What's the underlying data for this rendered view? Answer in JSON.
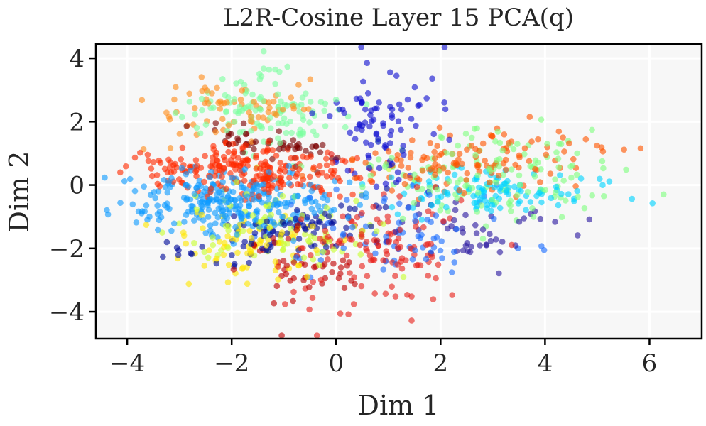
{
  "chart_data": {
    "type": "scatter",
    "title": "L2R-Cosine  Layer 15  PCA(q)",
    "xlabel": "Dim 1",
    "ylabel": "Dim 2",
    "xlim": [
      -4.6,
      7.0
    ],
    "ylim": [
      -4.85,
      4.45
    ],
    "xticks": [
      -4,
      -2,
      0,
      2,
      4,
      6
    ],
    "yticks": [
      -4,
      -2,
      0,
      2,
      4
    ],
    "xtick_labels": [
      "−4",
      "−2",
      "0",
      "2",
      "4",
      "6"
    ],
    "ytick_labels": [
      "−4",
      "−2",
      "0",
      "2",
      "4"
    ],
    "grid": true,
    "background": "#f7f7f7",
    "point_opacity": 0.62,
    "clusters": [
      {
        "name": "red",
        "color": "#ff2a00",
        "n": 230,
        "cx": -1.8,
        "cy": 0.45,
        "sx": 1.0,
        "sy": 0.42,
        "rot": -0.08
      },
      {
        "name": "red-orange",
        "color": "#ff5500",
        "n": 130,
        "cx": 2.6,
        "cy": 0.75,
        "sx": 1.2,
        "sy": 0.45,
        "rot": 0.12
      },
      {
        "name": "azure",
        "color": "#0f9bff",
        "n": 280,
        "cx": -2.0,
        "cy": -0.55,
        "sx": 0.95,
        "sy": 0.48,
        "rot": 0.0
      },
      {
        "name": "cyan",
        "color": "#00d4ff",
        "n": 110,
        "cx": 3.0,
        "cy": -0.3,
        "sx": 1.0,
        "sy": 0.35,
        "rot": 0.0
      },
      {
        "name": "blue",
        "color": "#1a6cff",
        "n": 70,
        "cx": 1.2,
        "cy": -1.6,
        "sx": 1.2,
        "sy": 0.7,
        "rot": 0.0
      },
      {
        "name": "crimson",
        "color": "#e8201a",
        "n": 120,
        "cx": 0.9,
        "cy": -2.0,
        "sx": 0.8,
        "sy": 0.9,
        "rot": 0.0
      },
      {
        "name": "dark red",
        "color": "#c00000",
        "n": 50,
        "cx": -0.7,
        "cy": -2.7,
        "sx": 0.55,
        "sy": 0.8,
        "rot": 0.3
      },
      {
        "name": "navy",
        "color": "#000c9a",
        "n": 90,
        "cx": -1.0,
        "cy": -1.5,
        "sx": 1.1,
        "sy": 0.4,
        "rot": 0.35
      },
      {
        "name": "royal blue",
        "color": "#1010d0",
        "n": 90,
        "cx": 1.0,
        "cy": 1.8,
        "sx": 0.6,
        "sy": 0.9,
        "rot": 0.0
      },
      {
        "name": "indigo",
        "color": "#2a18a0",
        "n": 50,
        "cx": 2.4,
        "cy": -1.5,
        "sx": 0.9,
        "sy": 0.5,
        "rot": 0.0
      },
      {
        "name": "light green",
        "color": "#7dffa0",
        "n": 120,
        "cx": -1.3,
        "cy": 2.3,
        "sx": 0.75,
        "sy": 0.6,
        "rot": 0.0
      },
      {
        "name": "mint",
        "color": "#80ff80",
        "n": 150,
        "cx": 2.6,
        "cy": 0.3,
        "sx": 1.3,
        "sy": 0.7,
        "rot": 0.0
      },
      {
        "name": "yellow-green",
        "color": "#c8ff30",
        "n": 90,
        "cx": -1.2,
        "cy": -1.4,
        "sx": 1.0,
        "sy": 0.7,
        "rot": 0.0
      },
      {
        "name": "yellow",
        "color": "#ffe600",
        "n": 80,
        "cx": -1.6,
        "cy": -2.0,
        "sx": 0.8,
        "sy": 0.6,
        "rot": 0.0
      },
      {
        "name": "orange",
        "color": "#ff8c1a",
        "n": 70,
        "cx": -2.1,
        "cy": 2.4,
        "sx": 0.8,
        "sy": 0.5,
        "rot": 0.0
      },
      {
        "name": "maroon",
        "color": "#7a0000",
        "n": 50,
        "cx": -1.3,
        "cy": 1.3,
        "sx": 0.75,
        "sy": 0.25,
        "rot": -0.35
      }
    ]
  }
}
